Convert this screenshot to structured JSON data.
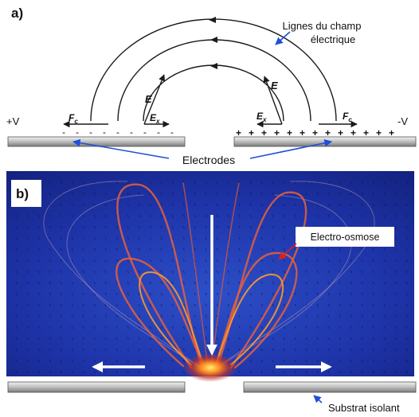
{
  "panel_a": {
    "label": "a)",
    "field_lines_label_line1": "Lignes du champ",
    "field_lines_label_line2": "électrique",
    "left_voltage": "+V",
    "right_voltage": "-V",
    "field_symbol": "E",
    "field_x_symbol": "E",
    "field_x_subscript": "x",
    "force_symbol": "F",
    "force_subscript": "c",
    "left_charge_sign": "-",
    "right_charge_sign": "+",
    "electrodes_label": "Electrodes"
  },
  "panel_b": {
    "label": "b)",
    "electroosmosis_label": "Electro-osmose",
    "substrate_label": "Substrat isolant"
  },
  "colors": {
    "field_line": "#1a1a1a",
    "annotation_arrow": "#1f4fd8",
    "electroosmosis_arrow": "#d62020",
    "electrode_fill": "#c8c8c8",
    "sim_background": "#1b2c9c",
    "flow_hot": "#ff9a2e",
    "flow_warm": "#e8603a"
  }
}
